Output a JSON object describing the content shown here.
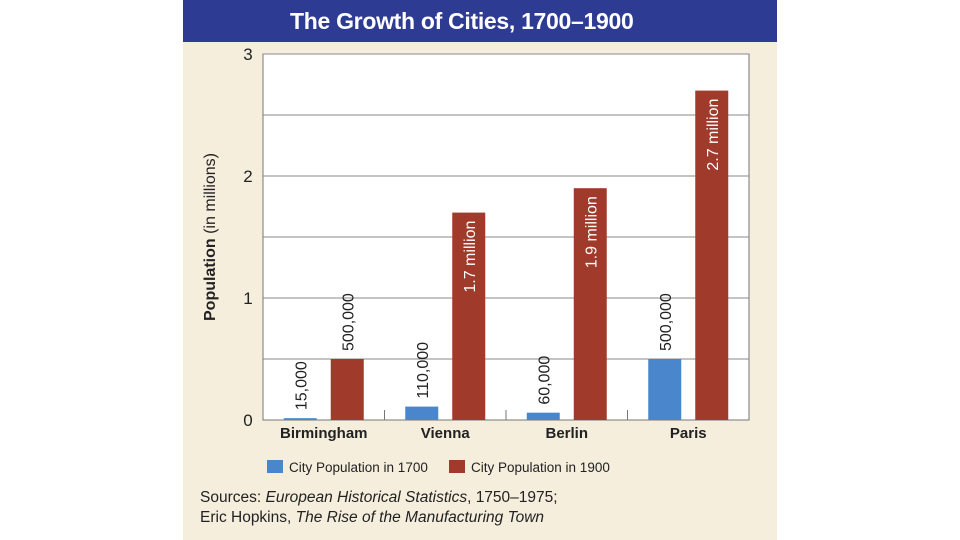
{
  "chart_data": {
    "type": "bar",
    "title": "The Growth of Cities, 1700–1900",
    "ylabel": "Population (in millions)",
    "xlabel": "",
    "ylim": [
      0,
      3
    ],
    "yticks": [
      "0",
      "1",
      "2",
      "3"
    ],
    "categories": [
      "Birmingham",
      "Vienna",
      "Berlin",
      "Paris"
    ],
    "series": [
      {
        "name": "City Population in 1700",
        "color": "#4a86cc",
        "values": [
          0.015,
          0.11,
          0.06,
          0.5
        ],
        "labels": [
          "15,000",
          "110,000",
          "60,000",
          "500,000"
        ]
      },
      {
        "name": "City Population in 1900",
        "color": "#a03a2b",
        "values": [
          0.5,
          1.7,
          1.9,
          2.7
        ],
        "labels": [
          "500,000",
          "1.7 million",
          "1.9 million",
          "2.7 million"
        ]
      }
    ],
    "gridlines": [
      0.5,
      1,
      1.5,
      2,
      2.5,
      3
    ]
  },
  "sources": {
    "prefix": "Sources: ",
    "title1": "European Historical Statistics",
    "rest1": ", 1750–1975;",
    "author2": "Eric Hopkins, ",
    "title2": "The Rise of the Manufacturing Town"
  },
  "colors": {
    "title_bg": "#2e3b92",
    "panel_bg": "#f5eedd",
    "plot_bg": "#ffffff"
  }
}
